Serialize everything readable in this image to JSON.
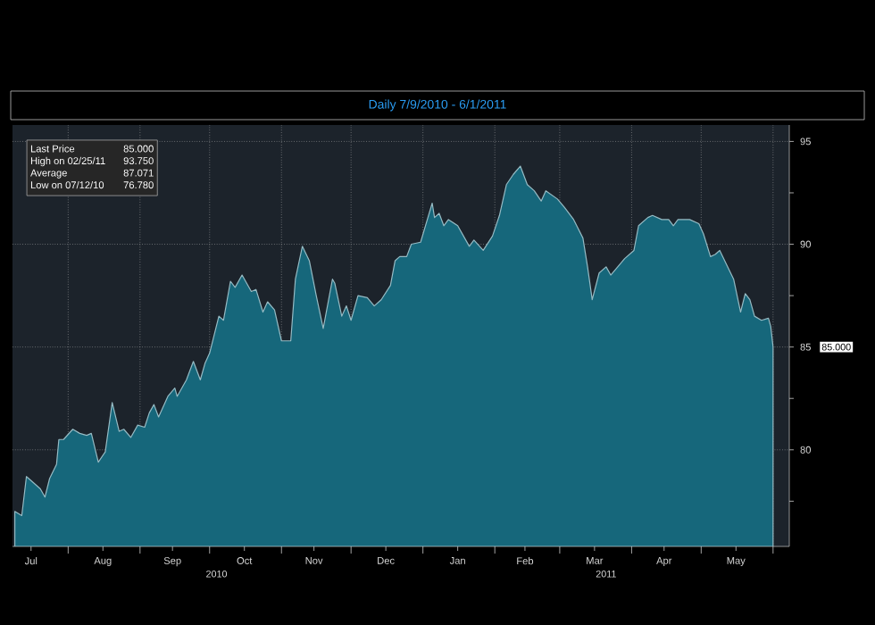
{
  "chart_data": {
    "type": "area",
    "title": "Daily 7/9/2010 - 6/1/2011",
    "x": [
      "2010-07-09",
      "2010-07-12",
      "2010-07-14",
      "2010-07-16",
      "2010-07-20",
      "2010-07-22",
      "2010-07-24",
      "2010-07-27",
      "2010-07-28",
      "2010-07-30",
      "2010-08-03",
      "2010-08-06",
      "2010-08-09",
      "2010-08-11",
      "2010-08-14",
      "2010-08-17",
      "2010-08-20",
      "2010-08-23",
      "2010-08-25",
      "2010-08-28",
      "2010-08-31",
      "2010-09-03",
      "2010-09-05",
      "2010-09-07",
      "2010-09-09",
      "2010-09-13",
      "2010-09-16",
      "2010-09-17",
      "2010-09-21",
      "2010-09-24",
      "2010-09-27",
      "2010-09-29",
      "2010-10-01",
      "2010-10-05",
      "2010-10-07",
      "2010-10-10",
      "2010-10-12",
      "2010-10-15",
      "2010-10-19",
      "2010-10-21",
      "2010-10-24",
      "2010-10-26",
      "2010-10-29",
      "2010-11-01",
      "2010-11-05",
      "2010-11-07",
      "2010-11-10",
      "2010-11-13",
      "2010-11-16",
      "2010-11-19",
      "2010-11-23",
      "2010-11-24",
      "2010-11-27",
      "2010-11-29",
      "2010-12-01",
      "2010-12-04",
      "2010-12-08",
      "2010-12-11",
      "2010-12-14",
      "2010-12-18",
      "2010-12-20",
      "2010-12-22",
      "2010-12-25",
      "2010-12-27",
      "2010-12-31",
      "2011-01-05",
      "2011-01-06",
      "2011-01-08",
      "2011-01-10",
      "2011-01-12",
      "2011-01-16",
      "2011-01-21",
      "2011-01-23",
      "2011-01-27",
      "2011-01-31",
      "2011-02-03",
      "2011-02-06",
      "2011-02-09",
      "2011-02-12",
      "2011-02-15",
      "2011-02-18",
      "2011-02-21",
      "2011-02-23",
      "2011-02-28",
      "2011-03-03",
      "2011-03-07",
      "2011-03-11",
      "2011-03-13",
      "2011-03-15",
      "2011-03-18",
      "2011-03-21",
      "2011-03-23",
      "2011-03-26",
      "2011-03-29",
      "2011-04-02",
      "2011-04-04",
      "2011-04-08",
      "2011-04-10",
      "2011-04-14",
      "2011-04-17",
      "2011-04-19",
      "2011-04-21",
      "2011-04-26",
      "2011-04-30",
      "2011-05-02",
      "2011-05-05",
      "2011-05-07",
      "2011-05-09",
      "2011-05-12",
      "2011-05-15",
      "2011-05-18",
      "2011-05-20",
      "2011-05-22",
      "2011-05-24",
      "2011-05-27",
      "2011-05-30",
      "2011-05-31",
      "2011-06-01"
    ],
    "series": [
      {
        "color": "#16677b",
        "values": [
          77.0,
          76.8,
          78.7,
          78.5,
          78.1,
          77.7,
          78.6,
          79.3,
          80.5,
          80.5,
          81.0,
          80.8,
          80.7,
          80.8,
          79.4,
          79.9,
          82.3,
          80.9,
          81.0,
          80.6,
          81.2,
          81.1,
          81.8,
          82.2,
          81.6,
          82.6,
          83.0,
          82.6,
          83.4,
          84.3,
          83.4,
          84.2,
          84.7,
          86.5,
          86.3,
          88.2,
          87.9,
          88.5,
          87.7,
          87.8,
          86.7,
          87.2,
          86.8,
          85.3,
          85.3,
          88.3,
          89.9,
          89.2,
          87.5,
          85.9,
          88.3,
          88.1,
          86.5,
          87.0,
          86.3,
          87.5,
          87.4,
          87.0,
          87.3,
          88.0,
          89.2,
          89.4,
          89.4,
          90.0,
          90.1,
          92.0,
          91.3,
          91.5,
          90.9,
          91.2,
          90.9,
          89.9,
          90.2,
          89.7,
          90.4,
          91.4,
          92.9,
          93.4,
          93.8,
          92.9,
          92.6,
          92.1,
          92.6,
          92.2,
          91.8,
          91.2,
          90.3,
          88.9,
          87.3,
          88.6,
          88.9,
          88.5,
          88.9,
          89.3,
          89.7,
          90.9,
          91.3,
          91.4,
          91.2,
          91.2,
          90.9,
          91.2,
          91.2,
          91.0,
          90.5,
          89.4,
          89.5,
          89.7,
          89.0,
          88.3,
          86.7,
          87.6,
          87.3,
          86.5,
          86.3,
          86.4,
          86.0,
          85.0
        ]
      }
    ],
    "xlim": [
      "2010-07-08",
      "2011-06-08"
    ],
    "xticks": [
      {
        "value": "2010-07-16",
        "label": "Jul"
      },
      {
        "value": "2010-08-16",
        "label": "Aug"
      },
      {
        "value": "2010-09-15",
        "label": "Sep"
      },
      {
        "value": "2010-10-16",
        "label": "Oct"
      },
      {
        "value": "2010-11-15",
        "label": "Nov"
      },
      {
        "value": "2010-12-16",
        "label": "Dec"
      },
      {
        "value": "2011-01-16",
        "label": "Jan"
      },
      {
        "value": "2011-02-14",
        "label": "Feb"
      },
      {
        "value": "2011-03-16",
        "label": "Mar"
      },
      {
        "value": "2011-04-15",
        "label": "Apr"
      },
      {
        "value": "2011-05-16",
        "label": "May"
      },
      {
        "value": "2010-08-01",
        "label": null
      },
      {
        "value": "2010-09-01",
        "label": null
      },
      {
        "value": "2010-10-01",
        "label": null
      },
      {
        "value": "2010-11-01",
        "label": null
      },
      {
        "value": "2010-12-01",
        "label": null
      },
      {
        "value": "2011-01-01",
        "label": null
      },
      {
        "value": "2011-02-01",
        "label": null
      },
      {
        "value": "2011-03-01",
        "label": null
      },
      {
        "value": "2011-04-01",
        "label": null
      },
      {
        "value": "2011-05-01",
        "label": null
      },
      {
        "value": "2011-06-01",
        "label": null
      }
    ],
    "ylim": [
      75.3,
      95.8
    ],
    "yticks": [
      80,
      85,
      90,
      95,
      {
        "value": 77.5,
        "label": null
      },
      {
        "value": 82.5,
        "label": null
      },
      {
        "value": 87.5,
        "label": null
      },
      {
        "value": 92.5,
        "label": null
      }
    ],
    "grid": true,
    "annotations": [
      "Last Price",
      "85.000",
      "High on 02/25/11",
      "93.750",
      "Average",
      "87.071",
      "Low on 07/12/10",
      "76.780",
      "2010",
      "2011",
      "85.000"
    ]
  }
}
